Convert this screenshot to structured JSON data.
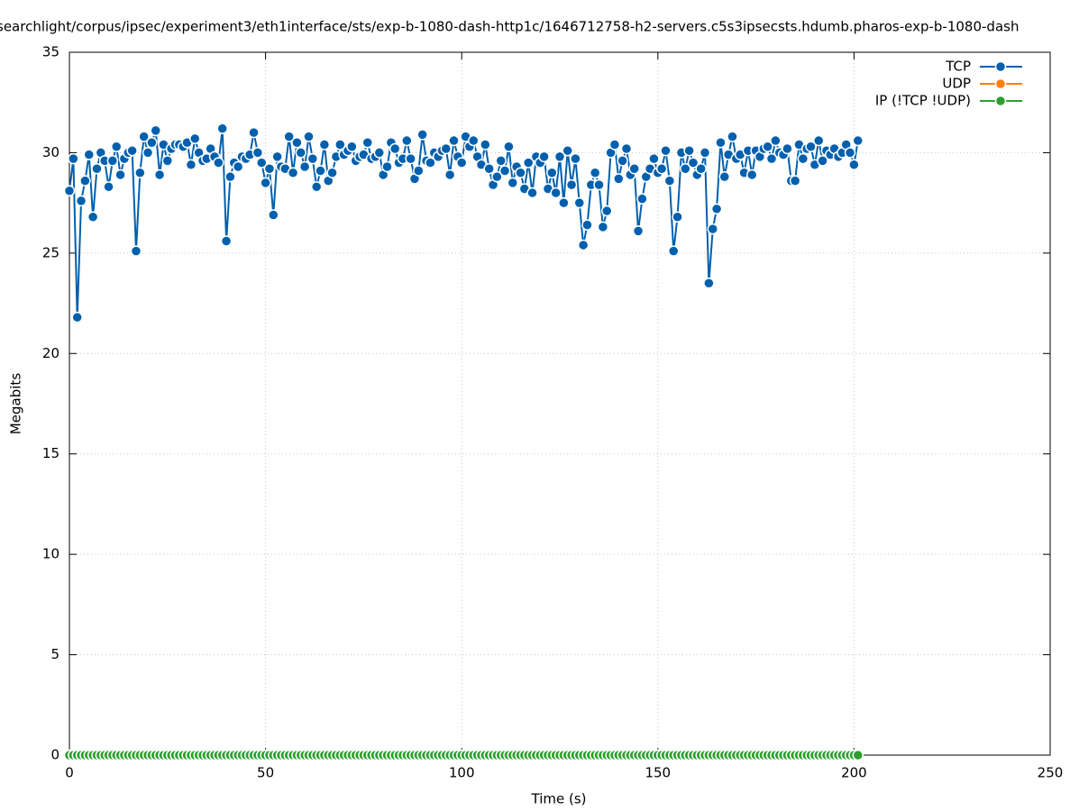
{
  "chart_data": {
    "type": "line",
    "title": "searchlight/corpus/ipsec/experiment3/eth1interface/sts/exp-b-1080-dash-http1c/1646712758-h2-servers.c5s3ipsecsts.hdumb.pharos-exp-b-1080-dash",
    "x_label": "Time (s)",
    "y_label": "Megabits",
    "xlim": [
      0,
      250
    ],
    "xticks": [
      0,
      50,
      100,
      150,
      200,
      250
    ],
    "ylim": [
      0,
      35
    ],
    "yticks": [
      0,
      5,
      10,
      15,
      20,
      25,
      30,
      35
    ],
    "grid": true,
    "legend": "top-right",
    "x": [
      0,
      1,
      2,
      3,
      4,
      5,
      6,
      7,
      8,
      9,
      10,
      11,
      12,
      13,
      14,
      15,
      16,
      17,
      18,
      19,
      20,
      21,
      22,
      23,
      24,
      25,
      26,
      27,
      28,
      29,
      30,
      31,
      32,
      33,
      34,
      35,
      36,
      37,
      38,
      39,
      40,
      41,
      42,
      43,
      44,
      45,
      46,
      47,
      48,
      49,
      50,
      51,
      52,
      53,
      54,
      55,
      56,
      57,
      58,
      59,
      60,
      61,
      62,
      63,
      64,
      65,
      66,
      67,
      68,
      69,
      70,
      71,
      72,
      73,
      74,
      75,
      76,
      77,
      78,
      79,
      80,
      81,
      82,
      83,
      84,
      85,
      86,
      87,
      88,
      89,
      90,
      91,
      92,
      93,
      94,
      95,
      96,
      97,
      98,
      99,
      100,
      101,
      102,
      103,
      104,
      105,
      106,
      107,
      108,
      109,
      110,
      111,
      112,
      113,
      114,
      115,
      116,
      117,
      118,
      119,
      120,
      121,
      122,
      123,
      124,
      125,
      126,
      127,
      128,
      129,
      130,
      131,
      132,
      133,
      134,
      135,
      136,
      137,
      138,
      139,
      140,
      141,
      142,
      143,
      144,
      145,
      146,
      147,
      148,
      149,
      150,
      151,
      152,
      153,
      154,
      155,
      156,
      157,
      158,
      159,
      160,
      161,
      162,
      163,
      164,
      165,
      166,
      167,
      168,
      169,
      170,
      171,
      172,
      173,
      174,
      175,
      176,
      177,
      178,
      179,
      180,
      181,
      182,
      183,
      184,
      185,
      186,
      187,
      188,
      189,
      190,
      191,
      192,
      193,
      194,
      195,
      196,
      197,
      198,
      199,
      200,
      201
    ],
    "series": [
      {
        "name": "TCP",
        "color": "#0060ad",
        "values": [
          28.1,
          29.7,
          21.8,
          27.6,
          28.6,
          29.9,
          26.8,
          29.2,
          30.0,
          29.6,
          28.3,
          29.6,
          30.3,
          28.9,
          29.7,
          30.0,
          30.1,
          25.1,
          29.0,
          30.8,
          30.0,
          30.5,
          31.1,
          28.9,
          30.4,
          29.6,
          30.2,
          30.4,
          30.4,
          30.3,
          30.5,
          29.4,
          30.7,
          30.0,
          29.6,
          29.7,
          30.2,
          29.8,
          29.5,
          31.2,
          25.6,
          28.8,
          29.5,
          29.3,
          29.8,
          29.7,
          29.9,
          31.0,
          30.0,
          29.5,
          28.5,
          29.2,
          26.9,
          29.8,
          29.3,
          29.2,
          30.8,
          29.0,
          30.5,
          30.0,
          29.3,
          30.8,
          29.7,
          28.3,
          29.1,
          30.4,
          28.6,
          29.0,
          29.8,
          30.4,
          29.9,
          30.1,
          30.3,
          29.6,
          29.8,
          29.9,
          30.5,
          29.7,
          29.8,
          30.0,
          28.9,
          29.3,
          30.5,
          30.2,
          29.5,
          29.7,
          30.6,
          29.7,
          28.7,
          29.1,
          30.9,
          29.6,
          29.5,
          30.0,
          29.8,
          30.1,
          30.2,
          28.9,
          30.6,
          29.8,
          29.5,
          30.8,
          30.3,
          30.6,
          29.8,
          29.4,
          30.4,
          29.2,
          28.4,
          28.8,
          29.6,
          29.1,
          30.3,
          28.5,
          29.3,
          29.0,
          28.2,
          29.5,
          28.0,
          29.8,
          29.5,
          29.8,
          28.2,
          29.0,
          28.0,
          29.8,
          27.5,
          30.1,
          28.4,
          29.7,
          27.5,
          25.4,
          26.4,
          28.4,
          29.0,
          28.4,
          26.3,
          27.1,
          30.0,
          30.4,
          28.7,
          29.6,
          30.2,
          28.9,
          29.2,
          26.1,
          27.7,
          28.8,
          29.2,
          29.7,
          29.0,
          29.2,
          30.1,
          28.6,
          25.1,
          26.8,
          30.0,
          29.2,
          30.1,
          29.5,
          28.9,
          29.2,
          30.0,
          23.5,
          26.2,
          27.2,
          30.5,
          28.8,
          29.9,
          30.8,
          29.7,
          29.9,
          29.0,
          30.1,
          28.9,
          30.1,
          29.8,
          30.2,
          30.3,
          29.7,
          30.6,
          30.0,
          29.9,
          30.2,
          28.6,
          28.6,
          30.4,
          29.7,
          30.2,
          30.3,
          29.4,
          30.6,
          29.6,
          30.1,
          29.9,
          30.2,
          29.8,
          30.0,
          30.4,
          30.0,
          29.4,
          30.6
        ]
      },
      {
        "name": "UDP",
        "color": "#ff7f0e",
        "values": [
          0,
          0,
          0,
          0,
          0,
          0,
          0,
          0,
          0,
          0,
          0,
          0,
          0,
          0,
          0,
          0,
          0,
          0,
          0,
          0,
          0,
          0,
          0,
          0,
          0,
          0,
          0,
          0,
          0,
          0,
          0,
          0,
          0,
          0,
          0,
          0,
          0,
          0,
          0,
          0,
          0,
          0,
          0,
          0,
          0,
          0,
          0,
          0,
          0,
          0,
          0,
          0,
          0,
          0,
          0,
          0,
          0,
          0,
          0,
          0,
          0,
          0,
          0,
          0,
          0,
          0,
          0,
          0,
          0,
          0,
          0,
          0,
          0,
          0,
          0,
          0,
          0,
          0,
          0,
          0,
          0,
          0,
          0,
          0,
          0,
          0,
          0,
          0,
          0,
          0,
          0,
          0,
          0,
          0,
          0,
          0,
          0,
          0,
          0,
          0,
          0,
          0,
          0,
          0,
          0,
          0,
          0,
          0,
          0,
          0,
          0,
          0,
          0,
          0,
          0,
          0,
          0,
          0,
          0,
          0,
          0,
          0,
          0,
          0,
          0,
          0,
          0,
          0,
          0,
          0,
          0,
          0,
          0,
          0,
          0,
          0,
          0,
          0,
          0,
          0,
          0,
          0,
          0,
          0,
          0,
          0,
          0,
          0,
          0,
          0,
          0,
          0,
          0,
          0,
          0,
          0,
          0,
          0,
          0,
          0,
          0,
          0,
          0,
          0,
          0,
          0,
          0,
          0,
          0,
          0,
          0,
          0,
          0,
          0,
          0,
          0,
          0,
          0,
          0,
          0,
          0,
          0,
          0,
          0,
          0,
          0,
          0,
          0,
          0,
          0,
          0,
          0,
          0,
          0,
          0,
          0,
          0,
          0,
          0,
          0,
          0,
          0
        ]
      },
      {
        "name": "IP (!TCP  !UDP)",
        "color": "#2ca02c",
        "values": [
          0,
          0,
          0,
          0,
          0,
          0,
          0,
          0,
          0,
          0,
          0,
          0,
          0,
          0,
          0,
          0,
          0,
          0,
          0,
          0,
          0,
          0,
          0,
          0,
          0,
          0,
          0,
          0,
          0,
          0,
          0,
          0,
          0,
          0,
          0,
          0,
          0,
          0,
          0,
          0,
          0,
          0,
          0,
          0,
          0,
          0,
          0,
          0,
          0,
          0,
          0,
          0,
          0,
          0,
          0,
          0,
          0,
          0,
          0,
          0,
          0,
          0,
          0,
          0,
          0,
          0,
          0,
          0,
          0,
          0,
          0,
          0,
          0,
          0,
          0,
          0,
          0,
          0,
          0,
          0,
          0,
          0,
          0,
          0,
          0,
          0,
          0,
          0,
          0,
          0,
          0,
          0,
          0,
          0,
          0,
          0,
          0,
          0,
          0,
          0,
          0,
          0,
          0,
          0,
          0,
          0,
          0,
          0,
          0,
          0,
          0,
          0,
          0,
          0,
          0,
          0,
          0,
          0,
          0,
          0,
          0,
          0,
          0,
          0,
          0,
          0,
          0,
          0,
          0,
          0,
          0,
          0,
          0,
          0,
          0,
          0,
          0,
          0,
          0,
          0,
          0,
          0,
          0,
          0,
          0,
          0,
          0,
          0,
          0,
          0,
          0,
          0,
          0,
          0,
          0,
          0,
          0,
          0,
          0,
          0,
          0,
          0,
          0,
          0,
          0,
          0,
          0,
          0,
          0,
          0,
          0,
          0,
          0,
          0,
          0,
          0,
          0,
          0,
          0,
          0,
          0,
          0,
          0,
          0,
          0,
          0,
          0,
          0,
          0,
          0,
          0,
          0,
          0,
          0,
          0,
          0,
          0,
          0,
          0,
          0,
          0,
          0
        ]
      }
    ]
  }
}
